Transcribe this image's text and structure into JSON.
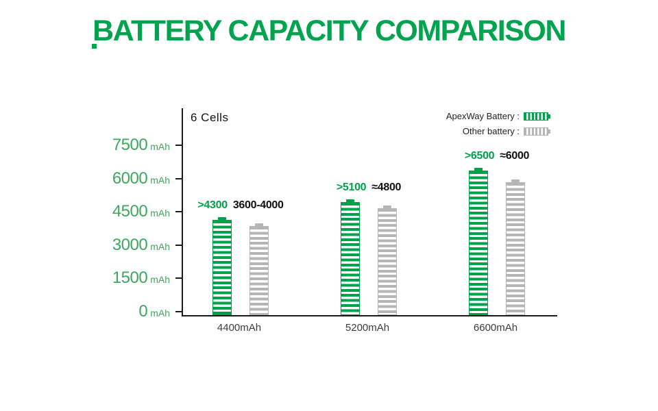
{
  "title": "BATTERY CAPACITY COMPARISON",
  "colors": {
    "title_green": "#00A44F",
    "bar_green": "#00A14B",
    "bar_gray": "#B5B5B5",
    "ytick_green": "#3EA75F",
    "axis": "#1a1a1a"
  },
  "chart": {
    "cells_label": "6 Cells",
    "legend": [
      {
        "label": "ApexWay Battery :",
        "color": "#00A14B"
      },
      {
        "label": "Other battery :",
        "color": "#B5B5B5"
      }
    ]
  },
  "chart_data": {
    "type": "bar",
    "title": "BATTERY CAPACITY COMPARISON",
    "group_label": "6 Cells",
    "categories": [
      "4400mAh",
      "5200mAh",
      "6600mAh"
    ],
    "series": [
      {
        "name": "ApexWay Battery",
        "color": "#00A14B",
        "values": [
          4300,
          5100,
          6500
        ],
        "data_labels": [
          ">4300",
          ">5100",
          ">6500"
        ]
      },
      {
        "name": "Other battery",
        "color": "#B5B5B5",
        "values": [
          4000,
          4800,
          6000
        ],
        "data_labels": [
          "3600-4000",
          "≈4800",
          "≈6000"
        ]
      }
    ],
    "unit": "mAh",
    "yticks": [
      7500,
      6000,
      4500,
      3000,
      1500,
      0
    ],
    "ylim": [
      0,
      7500
    ],
    "grid": false,
    "legend_position": "top-right"
  }
}
